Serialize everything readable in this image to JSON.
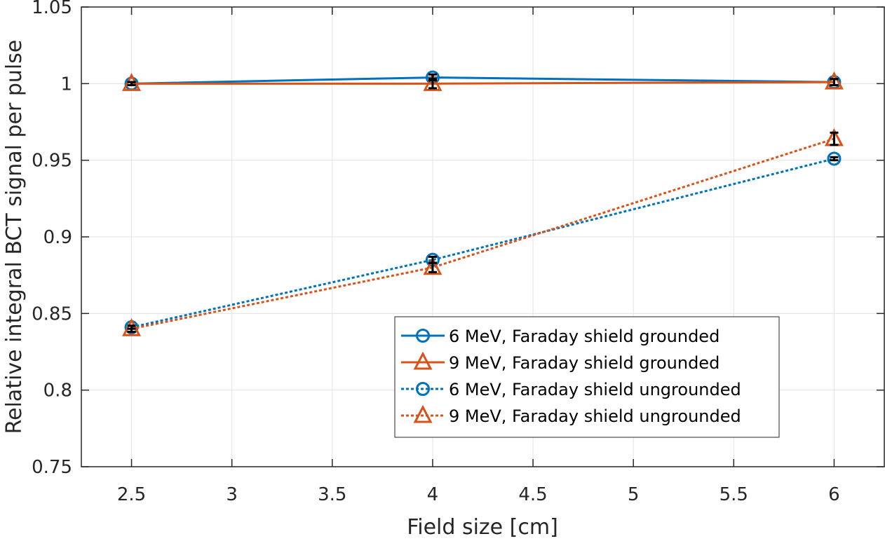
{
  "chart_data": {
    "type": "line",
    "title": "",
    "xlabel": "Field size [cm]",
    "ylabel": "Relative integral BCT signal per pulse",
    "xlim": [
      2.25,
      6.25
    ],
    "ylim": [
      0.75,
      1.05
    ],
    "xticks": [
      2.5,
      3,
      3.5,
      4,
      4.5,
      5,
      5.5,
      6
    ],
    "xtick_labels": [
      "2.5",
      "3",
      "3.5",
      "4",
      "4.5",
      "5",
      "5.5",
      "6"
    ],
    "yticks": [
      0.75,
      0.8,
      0.85,
      0.9,
      0.95,
      1.0,
      1.05
    ],
    "ytick_labels": [
      "0.75",
      "0.8",
      "0.85",
      "0.9",
      "0.95",
      "1",
      "1.05"
    ],
    "grid": true,
    "legend_position": "lower right (inside)",
    "x": [
      2.5,
      4,
      6
    ],
    "series": [
      {
        "name": "6 MeV, Faraday shield grounded",
        "values": [
          1.0,
          1.004,
          1.001
        ],
        "color": "#0072BD",
        "marker": "circle",
        "linestyle": "solid",
        "errors": [
          0.001,
          0.002,
          0.002
        ]
      },
      {
        "name": "9 MeV, Faraday shield grounded",
        "values": [
          1.0,
          1.0,
          1.001
        ],
        "color": "#D95319",
        "marker": "triangle",
        "linestyle": "solid",
        "errors": [
          0.001,
          0.003,
          0.002
        ]
      },
      {
        "name": "6 MeV, Faraday shield ungrounded",
        "values": [
          0.841,
          0.885,
          0.951
        ],
        "color": "#0072BD",
        "marker": "circle",
        "linestyle": "dotted",
        "errors": [
          0.001,
          0.002,
          0.001
        ]
      },
      {
        "name": "9 MeV, Faraday shield ungrounded",
        "values": [
          0.84,
          0.88,
          0.964
        ],
        "color": "#D95319",
        "marker": "triangle",
        "linestyle": "dotted",
        "errors": [
          0.002,
          0.003,
          0.004
        ]
      }
    ]
  },
  "legend": {
    "items": [
      "6 MeV, Faraday shield grounded",
      "9 MeV, Faraday shield grounded",
      "6 MeV, Faraday shield ungrounded",
      "9 MeV, Faraday shield ungrounded"
    ]
  },
  "axes": {
    "xlabel": "Field size [cm]",
    "ylabel": "Relative integral BCT signal per pulse"
  }
}
